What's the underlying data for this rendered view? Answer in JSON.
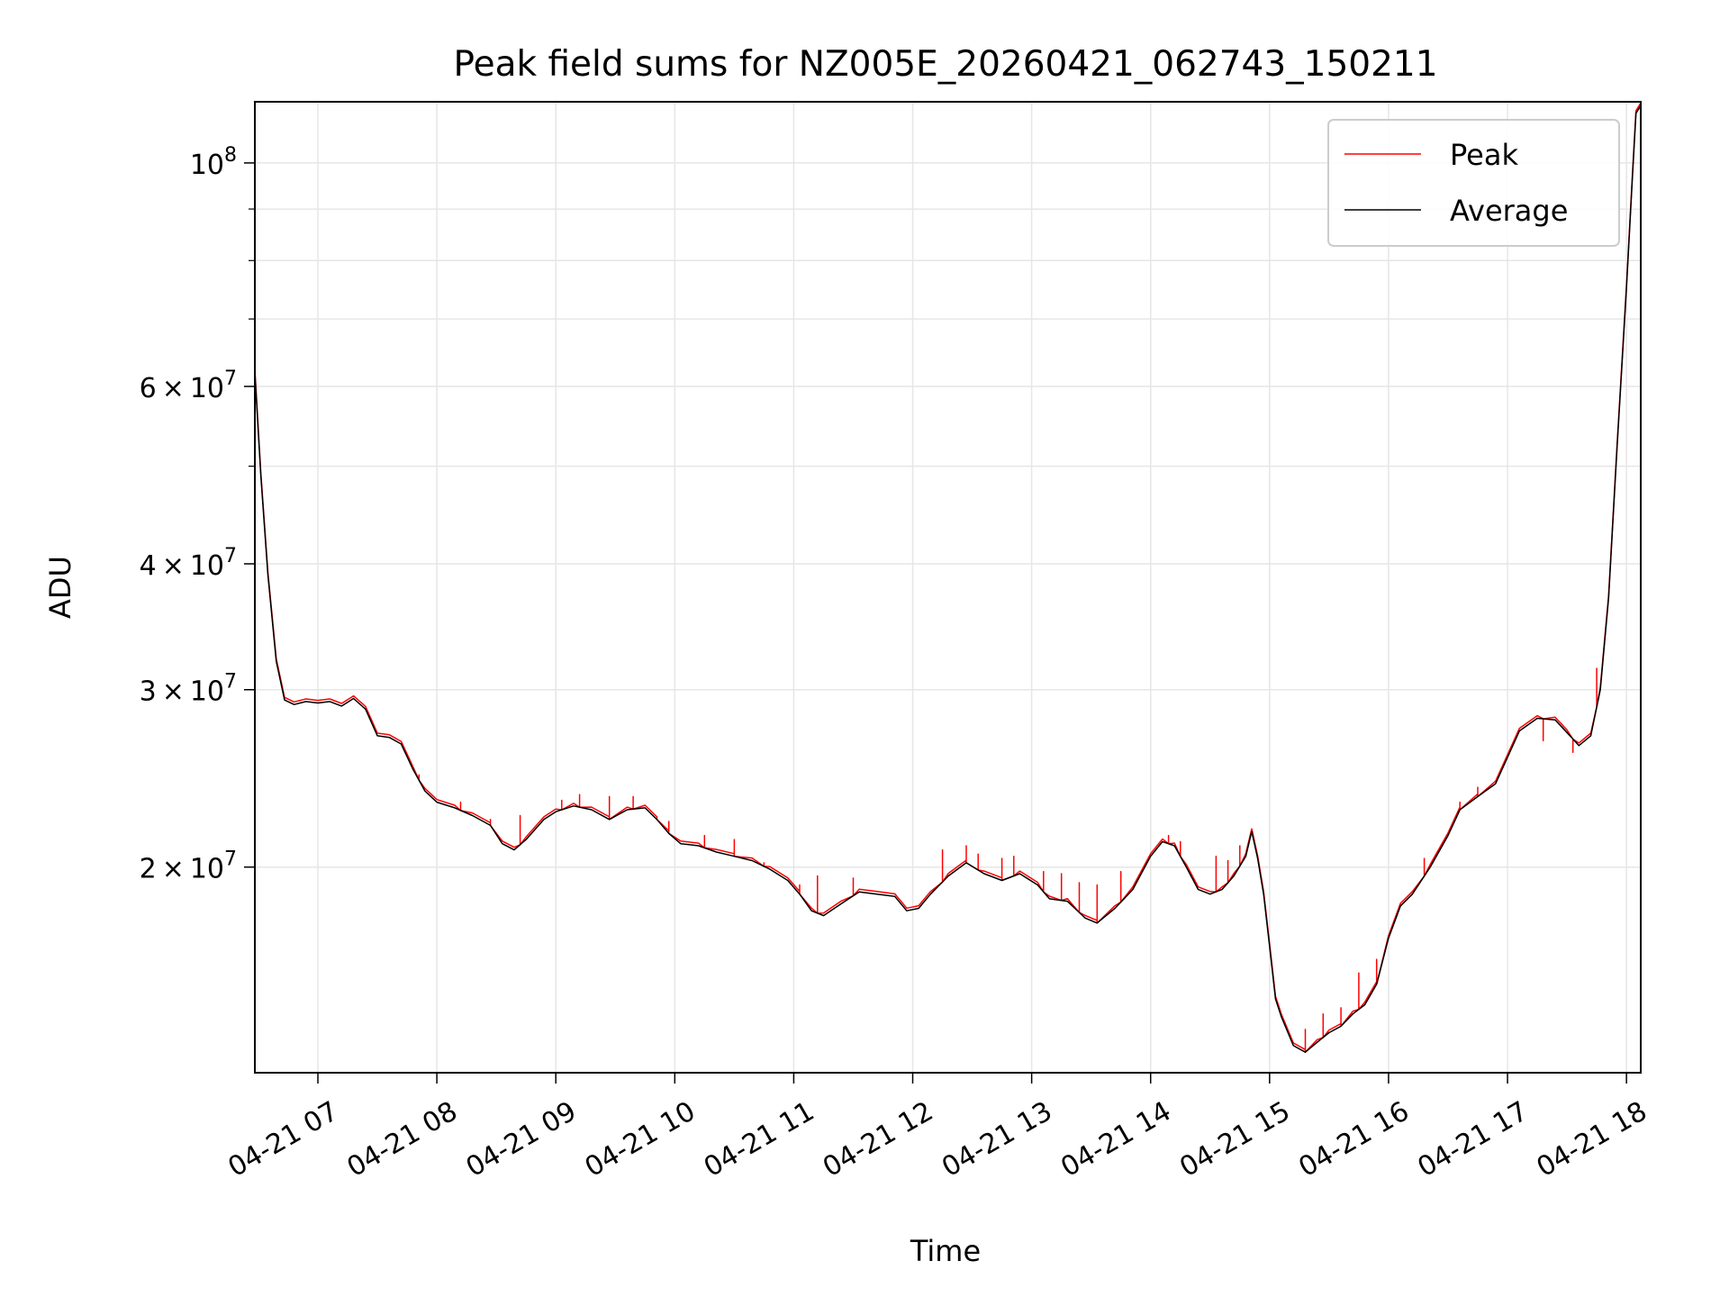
{
  "chart_data": {
    "type": "line",
    "title": "Peak field sums for NZ005E_20260421_062743_150211",
    "xlabel": "Time",
    "ylabel": "ADU",
    "yscale": "log",
    "ylim": [
      12500000,
      115000000
    ],
    "xlim": [
      6.47,
      18.12
    ],
    "grid": true,
    "legend_position": "top-right",
    "x_ticks": [
      {
        "value": 7,
        "label": "04-21 07"
      },
      {
        "value": 8,
        "label": "04-21 08"
      },
      {
        "value": 9,
        "label": "04-21 09"
      },
      {
        "value": 10,
        "label": "04-21 10"
      },
      {
        "value": 11,
        "label": "04-21 11"
      },
      {
        "value": 12,
        "label": "04-21 12"
      },
      {
        "value": 13,
        "label": "04-21 13"
      },
      {
        "value": 14,
        "label": "04-21 14"
      },
      {
        "value": 15,
        "label": "04-21 15"
      },
      {
        "value": 16,
        "label": "04-21 16"
      },
      {
        "value": 17,
        "label": "04-21 17"
      },
      {
        "value": 18,
        "label": "04-21 18"
      }
    ],
    "y_ticks_major": [
      {
        "value": 20000000,
        "mantissa": "2",
        "exponent": "7"
      },
      {
        "value": 30000000,
        "mantissa": "3",
        "exponent": "7"
      },
      {
        "value": 40000000,
        "mantissa": "4",
        "exponent": "7"
      },
      {
        "value": 60000000,
        "mantissa": "6",
        "exponent": "7"
      },
      {
        "value": 100000000,
        "mantissa": "",
        "exponent": "8"
      }
    ],
    "y_ticks_minor": [
      50000000,
      70000000,
      80000000,
      90000000
    ],
    "series": [
      {
        "name": "Peak",
        "color": "#ff0000",
        "spikes": [
          [
            7.85,
            24700000
          ],
          [
            8.2,
            23200000
          ],
          [
            8.45,
            22300000
          ],
          [
            8.7,
            22500000
          ],
          [
            9.05,
            23300000
          ],
          [
            9.2,
            23600000
          ],
          [
            9.45,
            23500000
          ],
          [
            9.65,
            23500000
          ],
          [
            9.85,
            22400000
          ],
          [
            9.95,
            22200000
          ],
          [
            10.25,
            21500000
          ],
          [
            10.5,
            21300000
          ],
          [
            10.75,
            20200000
          ],
          [
            11.05,
            19200000
          ],
          [
            11.2,
            19600000
          ],
          [
            11.5,
            19500000
          ],
          [
            12.25,
            20800000
          ],
          [
            12.45,
            21000000
          ],
          [
            12.55,
            20600000
          ],
          [
            12.75,
            20400000
          ],
          [
            12.85,
            20500000
          ],
          [
            13.1,
            19800000
          ],
          [
            13.25,
            19700000
          ],
          [
            13.4,
            19300000
          ],
          [
            13.55,
            19200000
          ],
          [
            13.75,
            19800000
          ],
          [
            14.15,
            21500000
          ],
          [
            14.25,
            21200000
          ],
          [
            14.55,
            20500000
          ],
          [
            14.65,
            20300000
          ],
          [
            14.75,
            21000000
          ],
          [
            15.3,
            13800000
          ],
          [
            15.45,
            14300000
          ],
          [
            15.6,
            14500000
          ],
          [
            15.75,
            15700000
          ],
          [
            15.9,
            16200000
          ],
          [
            16.3,
            20400000
          ],
          [
            16.6,
            23200000
          ],
          [
            16.75,
            24000000
          ],
          [
            17.3,
            26700000
          ],
          [
            17.55,
            26000000
          ],
          [
            17.75,
            31500000
          ]
        ]
      },
      {
        "name": "Average",
        "color": "#000000",
        "points": [
          [
            6.47,
            62000000
          ],
          [
            6.52,
            49000000
          ],
          [
            6.58,
            39000000
          ],
          [
            6.65,
            32000000
          ],
          [
            6.72,
            29300000
          ],
          [
            6.8,
            29000000
          ],
          [
            6.9,
            29200000
          ],
          [
            7.0,
            29100000
          ],
          [
            7.1,
            29200000
          ],
          [
            7.2,
            28900000
          ],
          [
            7.3,
            29400000
          ],
          [
            7.4,
            28700000
          ],
          [
            7.5,
            27000000
          ],
          [
            7.6,
            26900000
          ],
          [
            7.7,
            26500000
          ],
          [
            7.8,
            25000000
          ],
          [
            7.9,
            23800000
          ],
          [
            8.0,
            23200000
          ],
          [
            8.15,
            22900000
          ],
          [
            8.3,
            22500000
          ],
          [
            8.45,
            22000000
          ],
          [
            8.55,
            21100000
          ],
          [
            8.65,
            20800000
          ],
          [
            8.75,
            21300000
          ],
          [
            8.9,
            22300000
          ],
          [
            9.0,
            22700000
          ],
          [
            9.15,
            23000000
          ],
          [
            9.3,
            22800000
          ],
          [
            9.45,
            22300000
          ],
          [
            9.6,
            22800000
          ],
          [
            9.75,
            22900000
          ],
          [
            9.85,
            22300000
          ],
          [
            9.95,
            21600000
          ],
          [
            10.05,
            21100000
          ],
          [
            10.2,
            21000000
          ],
          [
            10.35,
            20700000
          ],
          [
            10.5,
            20500000
          ],
          [
            10.65,
            20300000
          ],
          [
            10.8,
            19900000
          ],
          [
            10.95,
            19400000
          ],
          [
            11.05,
            18800000
          ],
          [
            11.15,
            18100000
          ],
          [
            11.25,
            17900000
          ],
          [
            11.4,
            18400000
          ],
          [
            11.55,
            18900000
          ],
          [
            11.7,
            18800000
          ],
          [
            11.85,
            18700000
          ],
          [
            11.95,
            18100000
          ],
          [
            12.05,
            18200000
          ],
          [
            12.15,
            18800000
          ],
          [
            12.3,
            19600000
          ],
          [
            12.45,
            20200000
          ],
          [
            12.6,
            19700000
          ],
          [
            12.75,
            19400000
          ],
          [
            12.9,
            19700000
          ],
          [
            13.05,
            19200000
          ],
          [
            13.15,
            18600000
          ],
          [
            13.3,
            18500000
          ],
          [
            13.45,
            17800000
          ],
          [
            13.55,
            17600000
          ],
          [
            13.7,
            18200000
          ],
          [
            13.85,
            19000000
          ],
          [
            14.0,
            20500000
          ],
          [
            14.1,
            21200000
          ],
          [
            14.2,
            21000000
          ],
          [
            14.3,
            20000000
          ],
          [
            14.4,
            19000000
          ],
          [
            14.5,
            18800000
          ],
          [
            14.6,
            19000000
          ],
          [
            14.7,
            19600000
          ],
          [
            14.8,
            20500000
          ],
          [
            14.85,
            21700000
          ],
          [
            14.9,
            20400000
          ],
          [
            14.95,
            18800000
          ],
          [
            15.0,
            16700000
          ],
          [
            15.05,
            14800000
          ],
          [
            15.1,
            14200000
          ],
          [
            15.2,
            13300000
          ],
          [
            15.3,
            13100000
          ],
          [
            15.4,
            13400000
          ],
          [
            15.5,
            13700000
          ],
          [
            15.6,
            13900000
          ],
          [
            15.7,
            14300000
          ],
          [
            15.8,
            14600000
          ],
          [
            15.9,
            15300000
          ],
          [
            16.0,
            17000000
          ],
          [
            16.1,
            18300000
          ],
          [
            16.2,
            18800000
          ],
          [
            16.35,
            20000000
          ],
          [
            16.5,
            21500000
          ],
          [
            16.6,
            22800000
          ],
          [
            16.75,
            23500000
          ],
          [
            16.9,
            24200000
          ],
          [
            17.0,
            25700000
          ],
          [
            17.1,
            27300000
          ],
          [
            17.25,
            28100000
          ],
          [
            17.4,
            28000000
          ],
          [
            17.5,
            27200000
          ],
          [
            17.6,
            26400000
          ],
          [
            17.7,
            27000000
          ],
          [
            17.78,
            30000000
          ],
          [
            17.85,
            37000000
          ],
          [
            17.92,
            52000000
          ],
          [
            18.0,
            75000000
          ],
          [
            18.05,
            97000000
          ],
          [
            18.08,
            112000000
          ],
          [
            18.12,
            114000000
          ]
        ]
      }
    ]
  }
}
